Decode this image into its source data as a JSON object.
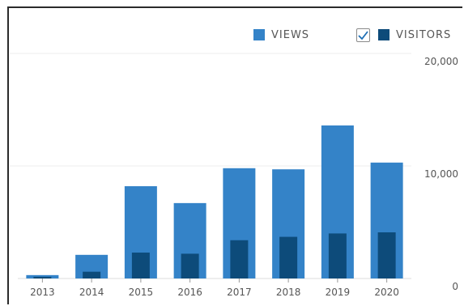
{
  "legend": {
    "views_label": "VIEWS",
    "visitors_label": "VISITORS",
    "visitors_checked": true
  },
  "chart_data": {
    "type": "bar",
    "categories": [
      "2013",
      "2014",
      "2015",
      "2016",
      "2017",
      "2018",
      "2019",
      "2020"
    ],
    "series": [
      {
        "name": "VIEWS",
        "values": [
          300,
          2100,
          8200,
          6700,
          9800,
          9700,
          13600,
          10300
        ],
        "color": "#3483c8"
      },
      {
        "name": "VISITORS",
        "values": [
          150,
          600,
          2300,
          2200,
          3400,
          3700,
          4000,
          4100
        ],
        "color": "#0d4b7a"
      }
    ],
    "y_ticks": [
      "20,000",
      "10,000",
      "0"
    ],
    "y_tick_values": [
      20000,
      10000,
      0
    ],
    "ylim": [
      0,
      20000
    ],
    "y_axis_position": "right",
    "grid": true
  }
}
